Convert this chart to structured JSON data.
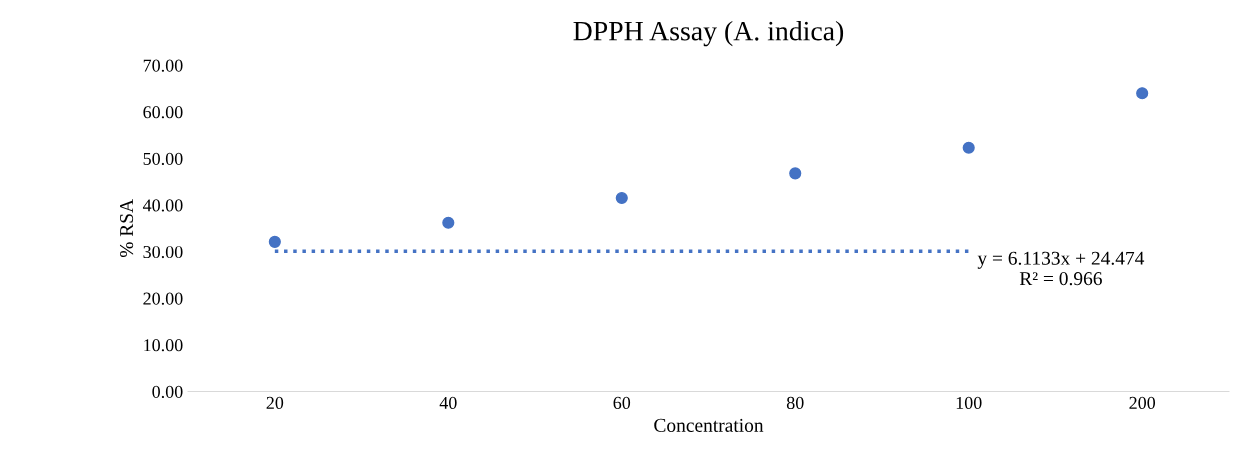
{
  "chart_data": {
    "type": "scatter",
    "title": "DPPH Assay (A. indica)",
    "xlabel": "Concentration",
    "ylabel": "% RSA",
    "categories": [
      "20",
      "40",
      "60",
      "80",
      "100",
      "200"
    ],
    "series": [
      {
        "color": "#4472c4",
        "marker": "circle",
        "values": [
          32.1,
          36.2,
          41.5,
          46.8,
          52.3,
          64.0
        ]
      },
      {
        "type": "line",
        "color": "#4472c4",
        "line_style": "dotted",
        "marker": "none",
        "values": [
          30.1,
          30.1,
          30.1,
          30.1,
          30.1,
          null
        ]
      }
    ],
    "ylim": [
      0,
      70
    ],
    "yticks": [
      {
        "value": 0,
        "label": "0.00"
      },
      {
        "value": 10,
        "label": "10.00"
      },
      {
        "value": 20,
        "label": "20.00"
      },
      {
        "value": 30,
        "label": "30.00"
      },
      {
        "value": 40,
        "label": "40.00"
      },
      {
        "value": 50,
        "label": "50.00"
      },
      {
        "value": 60,
        "label": "60.00"
      },
      {
        "value": 70,
        "label": "70.00"
      }
    ],
    "annotations": [
      "y = 6.1133x + 24.474\nR² = 0.966"
    ],
    "grid": false,
    "legend": false
  }
}
